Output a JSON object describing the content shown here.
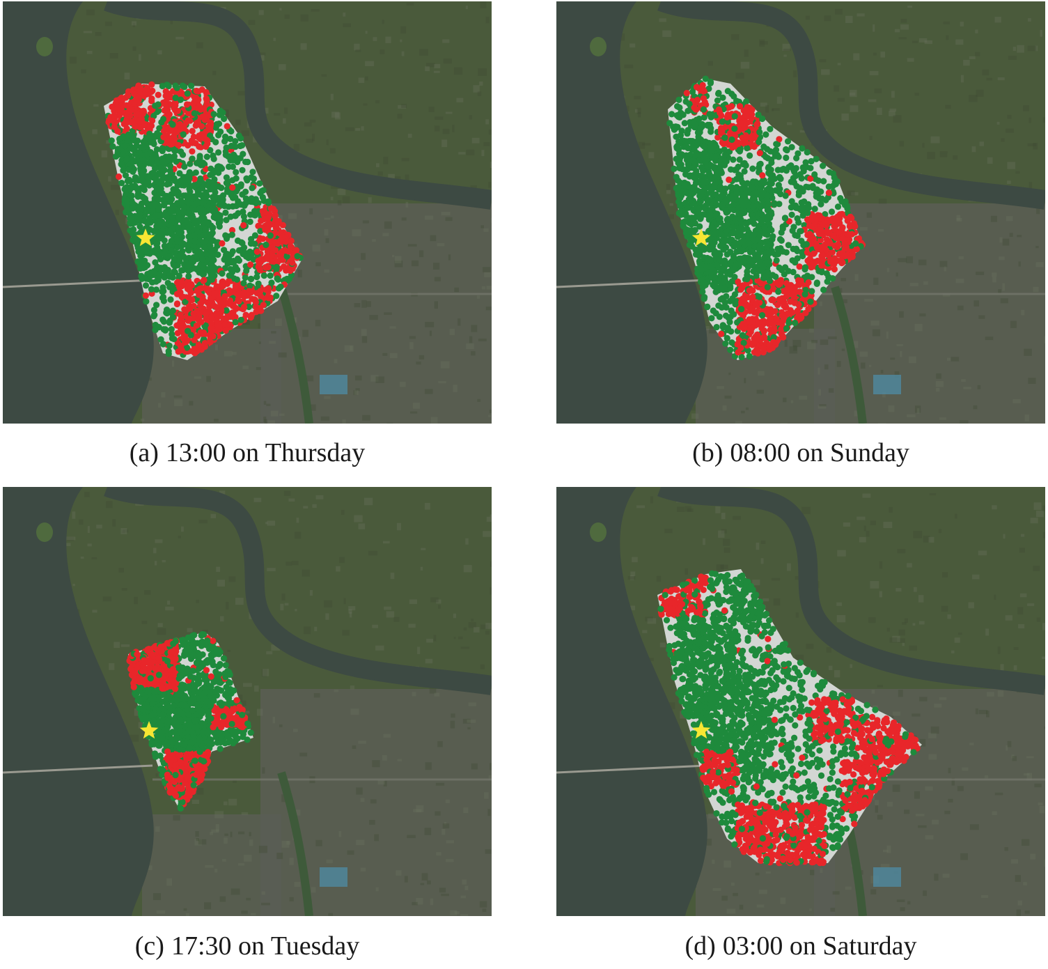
{
  "panels": [
    {
      "id": "a",
      "tag": "(a)",
      "caption": "13:00 on Thursday"
    },
    {
      "id": "b",
      "tag": "(b)",
      "caption": "08:00 on Sunday"
    },
    {
      "id": "c",
      "tag": "(c)",
      "caption": "17:30 on Tuesday"
    },
    {
      "id": "d",
      "tag": "(d)",
      "caption": "03:00 on Saturday"
    }
  ],
  "colors": {
    "river": "#3d4a43",
    "land": "#4a5a3b",
    "urban": "#5a5e55",
    "region_fill": "#d3d6d3",
    "green_dot": "#1e8a3c",
    "red_dot": "#e8262a",
    "star": "#f7e633"
  },
  "icons": {
    "marker": "star-icon"
  }
}
